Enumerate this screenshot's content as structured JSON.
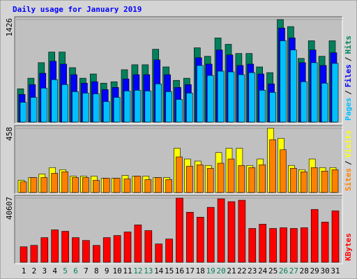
{
  "chart_data": {
    "type": "bar",
    "title": "Daily usage for January 2019",
    "categories": [
      "1",
      "2",
      "3",
      "4",
      "5",
      "6",
      "7",
      "8",
      "9",
      "10",
      "11",
      "12",
      "13",
      "14",
      "15",
      "16",
      "17",
      "18",
      "19",
      "20",
      "21",
      "22",
      "23",
      "24",
      "25",
      "26",
      "27",
      "28",
      "29",
      "30",
      "31"
    ],
    "category_colors": [
      "#000000",
      "#000000",
      "#000000",
      "#000000",
      "#00805c",
      "#00805c",
      "#000000",
      "#000000",
      "#000000",
      "#000000",
      "#000000",
      "#00805c",
      "#00805c",
      "#000000",
      "#000000",
      "#000000",
      "#000000",
      "#000000",
      "#00805c",
      "#00805c",
      "#000000",
      "#000000",
      "#000000",
      "#000000",
      "#000000",
      "#00805c",
      "#00805c",
      "#000000",
      "#000000",
      "#000000",
      "#000000"
    ],
    "legend_separator": "/",
    "panels": [
      {
        "ylim": [
          0,
          1426
        ],
        "yticks": [
          1426
        ],
        "series": [
          {
            "name": "Hits",
            "color": "#00805c",
            "values": [
              462,
              610,
              826,
              974,
              974,
              757,
              610,
              669,
              541,
              561,
              728,
              797,
              797,
              1013,
              767,
              580,
              610,
              1033,
              915,
              1170,
              1082,
              954,
              954,
              767,
              688,
              1426,
              1328,
              885,
              1131,
              915,
              1131
            ]
          },
          {
            "name": "Files",
            "color": "#0000ff",
            "values": [
              384,
              521,
              679,
              846,
              806,
              659,
              541,
              561,
              452,
              482,
              600,
              659,
              659,
              865,
              659,
              482,
              521,
              895,
              806,
              1003,
              934,
              787,
              806,
              669,
              531,
              1308,
              1170,
              826,
              1003,
              787,
              964
            ]
          },
          {
            "name": "Pages",
            "color": "#00c0ff",
            "values": [
              275,
              344,
              472,
              590,
              521,
              423,
              403,
              393,
              285,
              344,
              433,
              443,
              433,
              531,
              423,
              315,
              403,
              787,
              649,
              708,
              698,
              659,
              688,
              443,
              413,
              1131,
              1003,
              561,
              826,
              541,
              816
            ]
          }
        ]
      },
      {
        "ylim": [
          0,
          458
        ],
        "yticks": [
          458
        ],
        "series": [
          {
            "name": "Visits",
            "color": "#ffff00",
            "values": [
              87,
              107,
              132,
              178,
              163,
              117,
              117,
              117,
              102,
              102,
              122,
              117,
              117,
              107,
              107,
              316,
              239,
              224,
              193,
              285,
              316,
              316,
              193,
              239,
              458,
              387,
              193,
              163,
              239,
              178,
              178
            ]
          },
          {
            "name": "Sites",
            "color": "#ff8000",
            "values": [
              76,
              107,
              107,
              137,
              148,
              107,
              107,
              87,
              102,
              102,
              97,
              117,
              92,
              107,
              92,
              254,
              188,
              198,
              173,
              209,
              239,
              193,
              178,
              198,
              377,
              305,
              173,
              148,
              178,
              153,
              163
            ]
          }
        ]
      },
      {
        "ylim": [
          0,
          40607
        ],
        "yticks": [
          40607
        ],
        "series": [
          {
            "name": "KBytes",
            "color": "#ff0000",
            "values": [
              9812,
              10704,
              15610,
              20516,
              19624,
              15610,
              13826,
              10704,
              15610,
              16948,
              19178,
              23638,
              20070,
              11596,
              14718,
              40607,
              31666,
              28545,
              34788,
              40161,
              38377,
              39269,
              21408,
              24084,
              21408,
              21854,
              21408,
              21854,
              33450,
              25422,
              32558
            ]
          }
        ]
      }
    ]
  }
}
